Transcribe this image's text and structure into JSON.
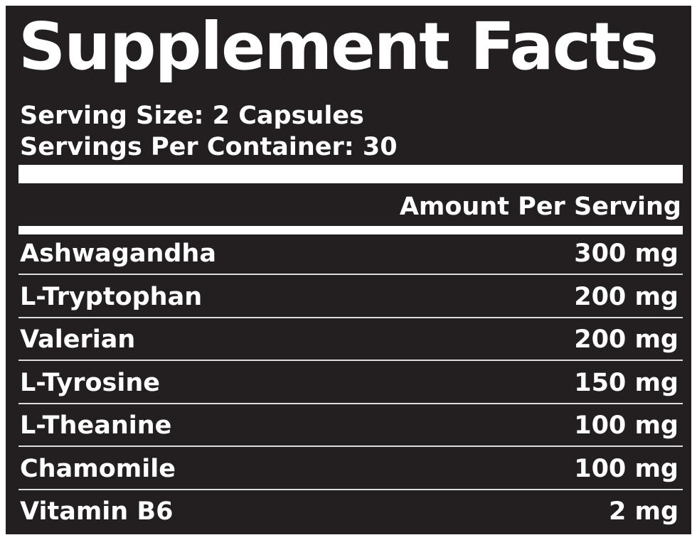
{
  "title": "Supplement Facts",
  "serving_size": "Serving Size: 2 Capsules",
  "servings_per_container": "Servings Per Container: 30",
  "amount_header": "Amount Per Serving",
  "rows": [
    [
      "Ashwagandha",
      "300 mg"
    ],
    [
      "L-Tryptophan",
      "200 mg"
    ],
    [
      "Valerian",
      "200 mg"
    ],
    [
      "L-Tyrosine",
      "150 mg"
    ],
    [
      "L-Theanine",
      "100 mg"
    ],
    [
      "Chamomile",
      "100 mg"
    ],
    [
      "Vitamin B6",
      "2 mg"
    ]
  ]
}
